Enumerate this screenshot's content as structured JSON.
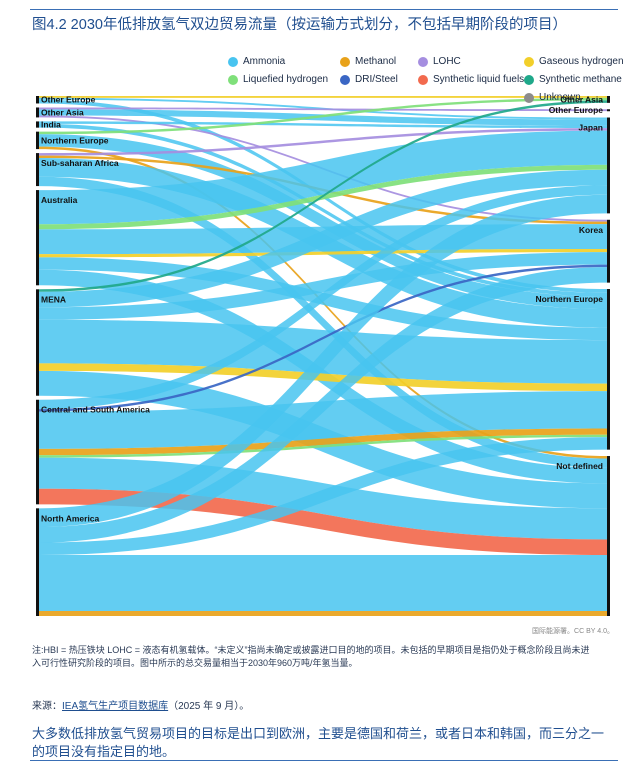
{
  "figure": {
    "title": "图4.2 2030年低排放氢气双边贸易流量（按运输方式划分，不包括早期阶段的项目）",
    "note": "注:HBI = 热压铁块 LOHC = 液态有机氢载体。“未定义”指尚未确定或披露进口目的地的项目。未包括的早期项目是指仍处于概念阶段且尚未进入可行性研究阶段的项目。图中所示的总交易量相当于2030年960万吨/年氢当量。",
    "credit": "国际能源署。CC BY 4.0。",
    "source_prefix": "来源：",
    "source_link": "IEA氢气生产项目数据库",
    "source_suffix": "（2025 年 9 月）。",
    "conclusion": "大多数低排放氢气贸易项目的目标是出口到欧洲，主要是德国和荷兰，或者日本和韩国，而三分之一的项目没有指定目的地。"
  },
  "chart_data": {
    "type": "sankey",
    "unit_note": "flow values are approximate shares of total traded volume (%)",
    "carriers": [
      {
        "name": "Ammonia",
        "color": "#48c4f0"
      },
      {
        "name": "Methanol",
        "color": "#e8a21a"
      },
      {
        "name": "LOHC",
        "color": "#a58ee0"
      },
      {
        "name": "Gaseous hydrogen",
        "color": "#f2cf2a"
      },
      {
        "name": "Liquefied hydrogen",
        "color": "#7fe07a"
      },
      {
        "name": "DRI/Steel",
        "color": "#3a66c4"
      },
      {
        "name": "Synthetic liquid fuels",
        "color": "#f26a4e"
      },
      {
        "name": "Synthetic methane",
        "color": "#1fa88a"
      },
      {
        "name": "Unknown",
        "color": "#8c8c8c"
      }
    ],
    "sources": [
      "Other Europe",
      "Other Asia",
      "India",
      "Northern Europe",
      "Sub-saharan Africa",
      "Australia",
      "MENA",
      "Central and South America",
      "North America"
    ],
    "destinations": [
      "Other Asia",
      "Other Europe",
      "Japan",
      "Korea",
      "Northern Europe",
      "Not defined"
    ],
    "flows": [
      {
        "from": "Other Europe",
        "to": "Northern Europe",
        "carrier": "Ammonia",
        "value": 0.6
      },
      {
        "from": "Other Europe",
        "to": "Other Asia",
        "carrier": "Gaseous hydrogen",
        "value": 0.3
      },
      {
        "from": "Other Europe",
        "to": "Japan",
        "carrier": "Ammonia",
        "value": 0.3
      },
      {
        "from": "Other Asia",
        "to": "Japan",
        "carrier": "Ammonia",
        "value": 1.0
      },
      {
        "from": "Other Asia",
        "to": "Other Europe",
        "carrier": "LOHC",
        "value": 0.3
      },
      {
        "from": "Other Asia",
        "to": "Korea",
        "carrier": "LOHC",
        "value": 0.3
      },
      {
        "from": "India",
        "to": "Japan",
        "carrier": "Ammonia",
        "value": 0.4
      },
      {
        "from": "India",
        "to": "Northern Europe",
        "carrier": "Ammonia",
        "value": 0.6
      },
      {
        "from": "Northern Europe",
        "to": "Northern Europe",
        "carrier": "Ammonia",
        "value": 2.0
      },
      {
        "from": "Northern Europe",
        "to": "Not defined",
        "carrier": "Methanol",
        "value": 0.4
      },
      {
        "from": "Northern Europe",
        "to": "Other Asia",
        "carrier": "Liquefied hydrogen",
        "value": 0.4
      },
      {
        "from": "Sub-saharan Africa",
        "to": "Northern Europe",
        "carrier": "Ammonia",
        "value": 3.0
      },
      {
        "from": "Sub-saharan Africa",
        "to": "Not defined",
        "carrier": "Ammonia",
        "value": 1.5
      },
      {
        "from": "Sub-saharan Africa",
        "to": "Japan",
        "carrier": "LOHC",
        "value": 0.4
      },
      {
        "from": "Sub-saharan Africa",
        "to": "Korea",
        "carrier": "Methanol",
        "value": 0.4
      },
      {
        "from": "Australia",
        "to": "Japan",
        "carrier": "Ammonia",
        "value": 5.5
      },
      {
        "from": "Australia",
        "to": "Korea",
        "carrier": "Ammonia",
        "value": 4.0
      },
      {
        "from": "Australia",
        "to": "Northern Europe",
        "carrier": "Ammonia",
        "value": 2.0
      },
      {
        "from": "Australia",
        "to": "Not defined",
        "carrier": "Ammonia",
        "value": 2.5
      },
      {
        "from": "Australia",
        "to": "Japan",
        "carrier": "Liquefied hydrogen",
        "value": 0.8
      },
      {
        "from": "Australia",
        "to": "Korea",
        "carrier": "Gaseous hydrogen",
        "value": 0.5
      },
      {
        "from": "MENA",
        "to": "Northern Europe",
        "carrier": "Ammonia",
        "value": 7.0
      },
      {
        "from": "MENA",
        "to": "Japan",
        "carrier": "Ammonia",
        "value": 2.5
      },
      {
        "from": "MENA",
        "to": "Korea",
        "carrier": "Ammonia",
        "value": 2.0
      },
      {
        "from": "MENA",
        "to": "Not defined",
        "carrier": "Ammonia",
        "value": 4.0
      },
      {
        "from": "MENA",
        "to": "Northern Europe",
        "carrier": "Gaseous hydrogen",
        "value": 1.2
      },
      {
        "from": "MENA",
        "to": "Other Asia",
        "carrier": "Synthetic methane",
        "value": 0.4
      },
      {
        "from": "Central and South America",
        "to": "Northern Europe",
        "carrier": "Ammonia",
        "value": 6.0
      },
      {
        "from": "Central and South America",
        "to": "Not defined",
        "carrier": "Ammonia",
        "value": 5.0
      },
      {
        "from": "Central and South America",
        "to": "Japan",
        "carrier": "Ammonia",
        "value": 1.5
      },
      {
        "from": "Central and South America",
        "to": "Not defined",
        "carrier": "Synthetic liquid fuels",
        "value": 2.5
      },
      {
        "from": "Central and South America",
        "to": "Northern Europe",
        "carrier": "Methanol",
        "value": 1.0
      },
      {
        "from": "Central and South America",
        "to": "Northern Europe",
        "carrier": "Liquefied hydrogen",
        "value": 0.4
      },
      {
        "from": "Central and South America",
        "to": "Korea",
        "carrier": "DRI/Steel",
        "value": 0.4
      },
      {
        "from": "North America",
        "to": "Not defined",
        "carrier": "Ammonia",
        "value": 9.0
      },
      {
        "from": "North America",
        "to": "Japan",
        "carrier": "Ammonia",
        "value": 3.0
      },
      {
        "from": "North America",
        "to": "Korea",
        "carrier": "Ammonia",
        "value": 2.5
      },
      {
        "from": "North America",
        "to": "Northern Europe",
        "carrier": "Ammonia",
        "value": 2.0
      },
      {
        "from": "North America",
        "to": "Not defined",
        "carrier": "Methanol",
        "value": 0.8
      }
    ]
  }
}
